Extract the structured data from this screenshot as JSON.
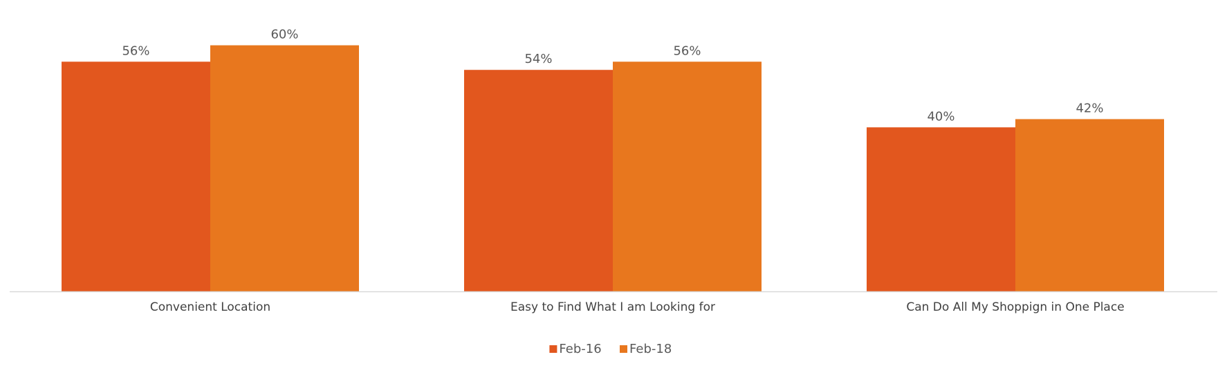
{
  "chart_data": {
    "type": "bar",
    "title": "",
    "xlabel": "",
    "ylabel": "",
    "categories": [
      "Convenient Location",
      "Easy to Find What I am Looking for",
      "Can Do All My Shoppign in One Place"
    ],
    "series": [
      {
        "name": "Feb-16",
        "color": "#E2571E",
        "values": [
          56,
          54,
          40
        ],
        "labels": [
          "56%",
          "54%",
          "40%"
        ]
      },
      {
        "name": "Feb-18",
        "color": "#E8771E",
        "values": [
          60,
          56,
          42
        ],
        "labels": [
          "60%",
          "56%",
          "42%"
        ]
      }
    ],
    "ylim": [
      0,
      67
    ],
    "value_suffix": "%",
    "grid": false,
    "legend_position": "bottom-center"
  }
}
